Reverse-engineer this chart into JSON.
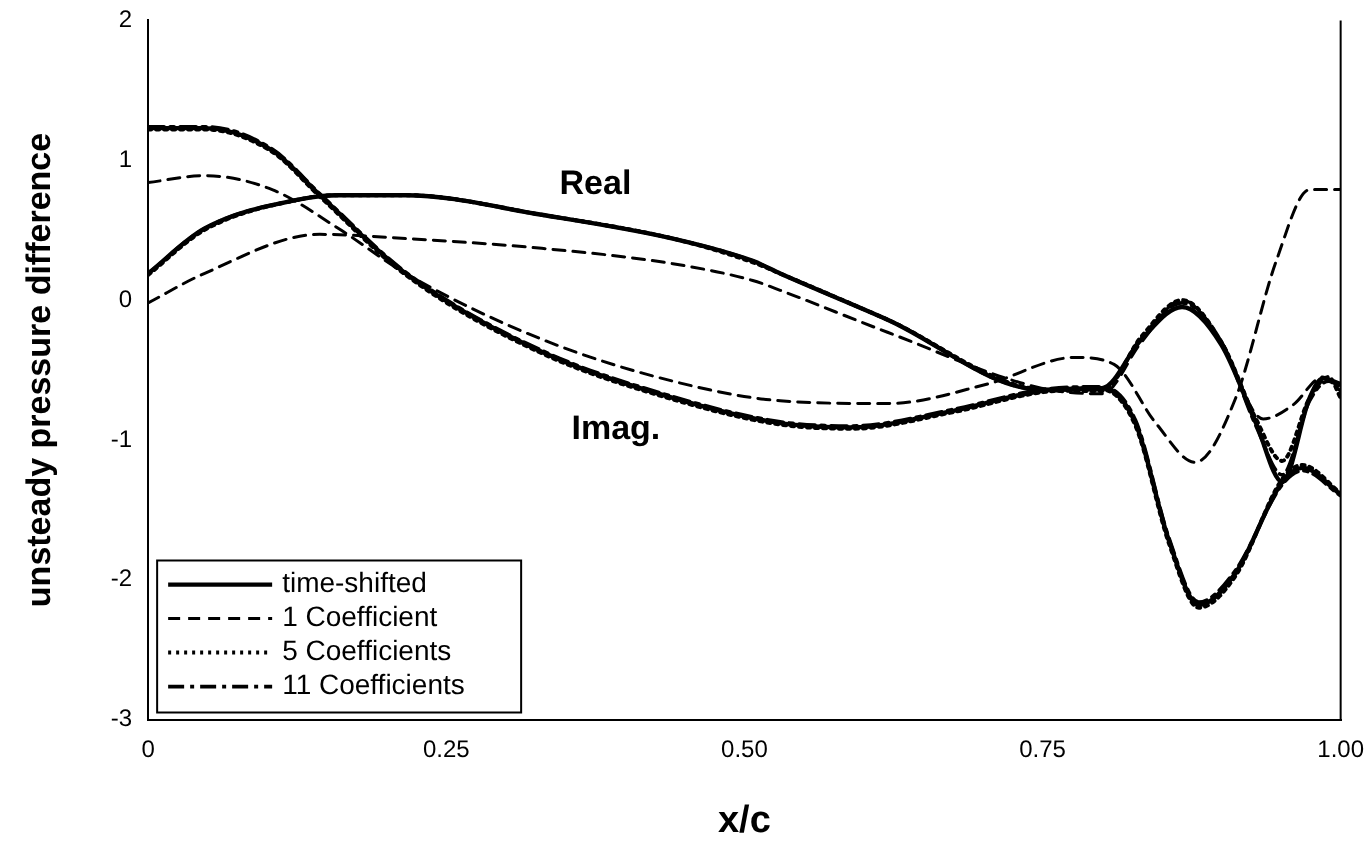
{
  "chart_data": {
    "type": "line",
    "xlabel": "x/c",
    "ylabel": "unsteady pressure difference",
    "xlim": [
      0,
      1
    ],
    "xticks": [
      0,
      0.25,
      {
        "value": 0.5,
        "label": "0.50"
      },
      0.75,
      {
        "value": 1,
        "label": "1.00"
      }
    ],
    "ylim": [
      -3,
      2
    ],
    "yticks": [
      -3,
      -2,
      -1,
      0,
      1,
      2
    ],
    "grid": false,
    "legend": "bottom left",
    "marker": "none",
    "annotations": [
      "Real",
      "Imag."
    ],
    "series": [
      {
        "name": "time-shifted",
        "color": "#000000",
        "line_style": "solid",
        "x": [
          0,
          0.047,
          0.127,
          0.16,
          0.216,
          0.33,
          0.44,
          0.507,
          0.53,
          0.62,
          0.749,
          0.8,
          0.833,
          0.867,
          0.9,
          0.929,
          0.951,
          0.974,
          0.985,
          1
        ],
        "values": [
          0.19,
          0.51,
          0.72,
          0.75,
          0.75,
          0.61,
          0.44,
          0.28,
          0.19,
          -0.14,
          -0.64,
          -0.63,
          -0.28,
          -0.05,
          -0.32,
          -0.88,
          -1.3,
          -0.7,
          -0.56,
          -0.6
        ]
      },
      {
        "name": "1 Coefficient",
        "color": "#000000",
        "line_style": "dashed",
        "x": [
          0,
          0.047,
          0.144,
          0.216,
          0.33,
          0.44,
          0.507,
          0.53,
          0.62,
          0.749,
          0.8,
          0.833,
          0.867,
          0.9,
          0.935,
          0.96,
          0.985,
          1
        ],
        "values": [
          -0.02,
          0.19,
          0.47,
          0.44,
          0.37,
          0.26,
          0.14,
          0.07,
          -0.23,
          -0.63,
          -0.67,
          -0.3,
          0.0,
          -0.3,
          -0.85,
          -0.75,
          -0.55,
          -0.65
        ]
      },
      {
        "name": "5 Coefficients",
        "color": "#000000",
        "line_style": "dotted",
        "x": [
          0,
          0.047,
          0.127,
          0.16,
          0.216,
          0.33,
          0.44,
          0.507,
          0.53,
          0.62,
          0.749,
          0.8,
          0.833,
          0.867,
          0.9,
          0.929,
          0.951,
          0.974,
          0.99,
          1
        ],
        "values": [
          0.18,
          0.5,
          0.72,
          0.75,
          0.75,
          0.61,
          0.44,
          0.27,
          0.19,
          -0.14,
          -0.64,
          -0.65,
          -0.26,
          0.0,
          -0.3,
          -0.85,
          -1.15,
          -0.7,
          -0.55,
          -0.7
        ]
      },
      {
        "name": "11 Coefficients",
        "color": "#000000",
        "line_style": "dashdot",
        "x": [
          0,
          0.047,
          0.127,
          0.16,
          0.216,
          0.33,
          0.44,
          0.507,
          0.53,
          0.62,
          0.749,
          0.8,
          0.833,
          0.867,
          0.9,
          0.929,
          0.951,
          0.974,
          0.99,
          1
        ],
        "values": [
          0.19,
          0.51,
          0.72,
          0.75,
          0.75,
          0.61,
          0.44,
          0.28,
          0.19,
          -0.14,
          -0.64,
          -0.64,
          -0.27,
          -0.02,
          -0.3,
          -0.9,
          -1.25,
          -0.72,
          -0.58,
          -0.62
        ]
      },
      {
        "color": "#000000",
        "line_style": "solid",
        "x": [
          0,
          0.047,
          0.104,
          0.144,
          0.216,
          0.33,
          0.44,
          0.53,
          0.59,
          0.676,
          0.749,
          0.8,
          0.828,
          0.856,
          0.881,
          0.912,
          0.951,
          0.968,
          1
        ],
        "values": [
          1.23,
          1.23,
          1.07,
          0.75,
          0.19,
          -0.37,
          -0.7,
          -0.88,
          -0.91,
          -0.79,
          -0.65,
          -0.63,
          -0.88,
          -1.72,
          -2.18,
          -1.95,
          -1.3,
          -1.2,
          -1.39
        ]
      },
      {
        "color": "#000000",
        "line_style": "dashed",
        "x": [
          0,
          0.047,
          0.104,
          0.16,
          0.216,
          0.33,
          0.44,
          0.53,
          0.62,
          0.704,
          0.777,
          0.81,
          0.845,
          0.878,
          0.912,
          0.946,
          0.974,
          1
        ],
        "values": [
          0.84,
          0.89,
          0.79,
          0.51,
          0.19,
          -0.28,
          -0.58,
          -0.72,
          -0.74,
          -0.6,
          -0.41,
          -0.46,
          -0.88,
          -1.16,
          -0.7,
          0.28,
          0.79,
          0.79
        ]
      },
      {
        "color": "#000000",
        "line_style": "dotted",
        "x": [
          0,
          0.047,
          0.104,
          0.144,
          0.216,
          0.33,
          0.44,
          0.53,
          0.59,
          0.676,
          0.749,
          0.8,
          0.828,
          0.856,
          0.881,
          0.912,
          0.951,
          0.968,
          1
        ],
        "values": [
          1.22,
          1.22,
          1.06,
          0.74,
          0.18,
          -0.38,
          -0.71,
          -0.89,
          -0.92,
          -0.8,
          -0.66,
          -0.64,
          -0.9,
          -1.74,
          -2.2,
          -1.97,
          -1.28,
          -1.18,
          -1.38
        ]
      },
      {
        "color": "#000000",
        "line_style": "dashdot",
        "x": [
          0,
          0.047,
          0.104,
          0.144,
          0.216,
          0.33,
          0.44,
          0.53,
          0.59,
          0.676,
          0.749,
          0.8,
          0.828,
          0.856,
          0.881,
          0.912,
          0.951,
          0.968,
          1
        ],
        "values": [
          1.24,
          1.24,
          1.08,
          0.76,
          0.2,
          -0.36,
          -0.69,
          -0.87,
          -0.9,
          -0.78,
          -0.64,
          -0.62,
          -0.86,
          -1.7,
          -2.16,
          -1.93,
          -1.32,
          -1.22,
          -1.4
        ]
      }
    ]
  }
}
